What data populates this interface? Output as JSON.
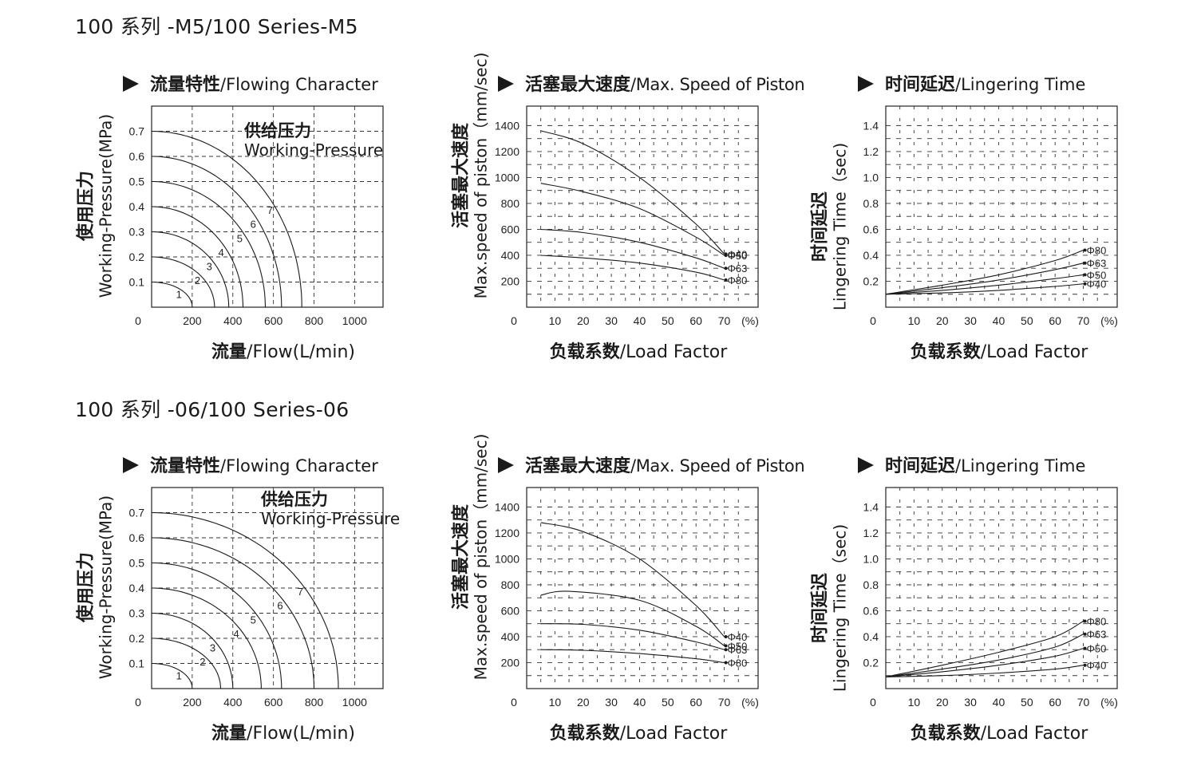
{
  "figures": [
    {
      "title": "100 系列 -M5/100 Series-M5"
    },
    {
      "title": "100 系列 -06/100 Series-06"
    }
  ],
  "panels": {
    "flow": {
      "title_cn": "流量特性",
      "title_en": "/Flowing Character",
      "xlabel_cn": "流量",
      "xlabel_en": "/Flow(L/min)",
      "ylabel_cn": "使用压力",
      "ylabel_en": "Working-Pressure(MPa)",
      "legend_cn": "供给压力",
      "legend_en": "Working-Pressure"
    },
    "speed": {
      "title_cn": "活塞最大速度",
      "title_en": "/Max. Speed of Piston",
      "xlabel_cn": "负载系数",
      "xlabel_en": "/Load Factor",
      "ylabel_cn": "活塞最大速度",
      "ylabel_en": "Max.speed of piston（mm/sec)"
    },
    "time": {
      "title_cn": "时间延迟",
      "title_en": "/Lingering Time",
      "xlabel_cn": "负载系数",
      "xlabel_en": "/Load Factor",
      "ylabel_cn": "时间延迟",
      "ylabel_en": "Lingering Time（sec)"
    }
  },
  "chart_data": [
    {
      "type": "line",
      "title": "流量特性 /Flowing Character",
      "xlabel": "流量 /Flow(L/min)",
      "ylabel": "使用压力 Working-Pressure(MPa)",
      "xlim": [
        0,
        1140
      ],
      "ylim": [
        0,
        0.8
      ],
      "xticks": [
        0,
        200,
        400,
        600,
        800,
        1000
      ],
      "yticks": [
        0.1,
        0.2,
        0.3,
        0.4,
        0.5,
        0.6,
        0.7
      ],
      "grid": true,
      "series": [
        {
          "name": "1",
          "max_pressure": 0.1,
          "max_flow": 200
        },
        {
          "name": "2",
          "max_pressure": 0.2,
          "max_flow": 310
        },
        {
          "name": "3",
          "max_pressure": 0.3,
          "max_flow": 380
        },
        {
          "name": "4",
          "max_pressure": 0.4,
          "max_flow": 450
        },
        {
          "name": "5",
          "max_pressure": 0.5,
          "max_flow": 560
        },
        {
          "name": "6",
          "max_pressure": 0.6,
          "max_flow": 640
        },
        {
          "name": "7",
          "max_pressure": 0.7,
          "max_flow": 740
        }
      ]
    },
    {
      "type": "line",
      "title": "活塞最大速度 /Max. Speed of Piston",
      "xlabel": "负载系数 /Load Factor",
      "ylabel": "活塞最大速度 Max.speed of piston（mm/sec)",
      "xunit": "(%)",
      "xlim": [
        0,
        82
      ],
      "ylim": [
        0,
        1550
      ],
      "xticks": [
        0,
        10,
        20,
        30,
        40,
        50,
        60,
        70
      ],
      "yticks": [
        200,
        400,
        600,
        800,
        1000,
        1200,
        1400
      ],
      "grid": true,
      "series": [
        {
          "name": "Φ40",
          "x": [
            5,
            20,
            40,
            60,
            70
          ],
          "y": [
            1360,
            1260,
            1000,
            640,
            410
          ]
        },
        {
          "name": "Φ50",
          "x": [
            5,
            20,
            40,
            60,
            70
          ],
          "y": [
            955,
            890,
            760,
            540,
            400
          ]
        },
        {
          "name": "Φ63",
          "x": [
            5,
            20,
            40,
            60,
            70
          ],
          "y": [
            600,
            575,
            500,
            380,
            300
          ]
        },
        {
          "name": "Φ80",
          "x": [
            5,
            20,
            40,
            60,
            70
          ],
          "y": [
            400,
            380,
            340,
            270,
            210
          ]
        }
      ]
    },
    {
      "type": "line",
      "title": "时间延迟 /Lingering Time",
      "xlabel": "负载系数 /Load Factor",
      "ylabel": "时间延迟 Lingering Time（sec)",
      "xunit": "(%)",
      "xlim": [
        0,
        82
      ],
      "ylim": [
        0,
        1.55
      ],
      "xticks": [
        0,
        10,
        20,
        30,
        40,
        50,
        60,
        70
      ],
      "yticks": [
        0.2,
        0.4,
        0.6,
        0.8,
        1.0,
        1.2,
        1.4
      ],
      "grid": true,
      "series": [
        {
          "name": "Φ80",
          "x": [
            0,
            20,
            40,
            60,
            70
          ],
          "y": [
            0.1,
            0.17,
            0.25,
            0.36,
            0.44
          ]
        },
        {
          "name": "Φ63",
          "x": [
            0,
            20,
            40,
            60,
            70
          ],
          "y": [
            0.1,
            0.15,
            0.21,
            0.29,
            0.34
          ]
        },
        {
          "name": "Φ50",
          "x": [
            0,
            20,
            40,
            60,
            70
          ],
          "y": [
            0.1,
            0.13,
            0.17,
            0.22,
            0.25
          ]
        },
        {
          "name": "Φ40",
          "x": [
            0,
            20,
            40,
            60,
            70
          ],
          "y": [
            0.1,
            0.11,
            0.13,
            0.16,
            0.18
          ]
        }
      ]
    },
    {
      "type": "line",
      "title": "流量特性 /Flowing Character",
      "xlabel": "流量 /Flow(L/min)",
      "ylabel": "使用压力 Working-Pressure(MPa)",
      "xlim": [
        0,
        1140
      ],
      "ylim": [
        0,
        0.8
      ],
      "xticks": [
        0,
        200,
        400,
        600,
        800,
        1000
      ],
      "yticks": [
        0.1,
        0.2,
        0.3,
        0.4,
        0.5,
        0.6,
        0.7
      ],
      "grid": true,
      "series": [
        {
          "name": "1",
          "max_pressure": 0.1,
          "max_flow": 200
        },
        {
          "name": "2",
          "max_pressure": 0.2,
          "max_flow": 340
        },
        {
          "name": "3",
          "max_pressure": 0.3,
          "max_flow": 400
        },
        {
          "name": "4",
          "max_pressure": 0.4,
          "max_flow": 540
        },
        {
          "name": "5",
          "max_pressure": 0.5,
          "max_flow": 640
        },
        {
          "name": "6",
          "max_pressure": 0.6,
          "max_flow": 800
        },
        {
          "name": "7",
          "max_pressure": 0.7,
          "max_flow": 920
        }
      ]
    },
    {
      "type": "line",
      "title": "活塞最大速度 /Max. Speed of Piston",
      "xlabel": "负载系数 /Load Factor",
      "ylabel": "活塞最大速度 Max.speed of piston（mm/sec)",
      "xunit": "(%)",
      "xlim": [
        0,
        82
      ],
      "ylim": [
        0,
        1550
      ],
      "xticks": [
        0,
        10,
        20,
        30,
        40,
        50,
        60,
        70
      ],
      "yticks": [
        200,
        400,
        600,
        800,
        1000,
        1200,
        1400
      ],
      "grid": true,
      "series": [
        {
          "name": "Φ40",
          "x": [
            5,
            20,
            40,
            60,
            70
          ],
          "y": [
            1280,
            1210,
            1000,
            640,
            400
          ]
        },
        {
          "name": "Φ50",
          "x": [
            5,
            15,
            40,
            60,
            70
          ],
          "y": [
            720,
            750,
            680,
            480,
            330
          ]
        },
        {
          "name": "Φ63",
          "x": [
            5,
            20,
            40,
            60,
            70
          ],
          "y": [
            500,
            495,
            450,
            360,
            300
          ]
        },
        {
          "name": "Φ80",
          "x": [
            5,
            20,
            40,
            60,
            70
          ],
          "y": [
            300,
            295,
            270,
            230,
            200
          ]
        }
      ]
    },
    {
      "type": "line",
      "title": "时间延迟 /Lingering Time",
      "xlabel": "负载系数 /Load Factor",
      "ylabel": "时间延迟 Lingering Time（sec)",
      "xunit": "(%)",
      "xlim": [
        0,
        82
      ],
      "ylim": [
        0,
        1.55
      ],
      "xticks": [
        0,
        10,
        20,
        30,
        40,
        50,
        60,
        70
      ],
      "yticks": [
        0.2,
        0.4,
        0.6,
        0.8,
        1.0,
        1.2,
        1.4
      ],
      "grid": true,
      "series": [
        {
          "name": "Φ80",
          "x": [
            0,
            20,
            40,
            60,
            70
          ],
          "y": [
            0.09,
            0.18,
            0.28,
            0.4,
            0.52
          ]
        },
        {
          "name": "Φ63",
          "x": [
            0,
            20,
            40,
            60,
            70
          ],
          "y": [
            0.09,
            0.15,
            0.22,
            0.32,
            0.42
          ]
        },
        {
          "name": "Φ50",
          "x": [
            0,
            20,
            40,
            60,
            70
          ],
          "y": [
            0.09,
            0.13,
            0.18,
            0.25,
            0.31
          ]
        },
        {
          "name": "Φ40",
          "x": [
            0,
            20,
            40,
            60,
            70
          ],
          "y": [
            0.09,
            0.1,
            0.12,
            0.15,
            0.18
          ]
        }
      ]
    }
  ]
}
